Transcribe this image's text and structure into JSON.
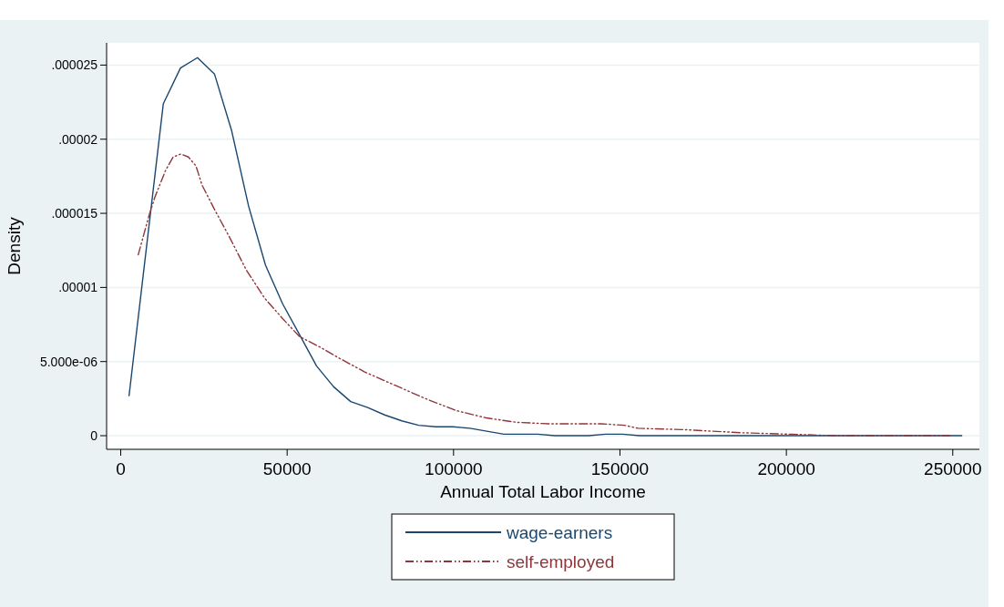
{
  "chart_data": {
    "type": "line",
    "xlabel": "Annual Total Labor Income",
    "ylabel": "Density",
    "xlim": [
      -4250,
      258000
    ],
    "xticks": [
      0,
      50000,
      100000,
      150000,
      200000,
      250000
    ],
    "ylim": [
      -9.2e-07,
      2.65e-05
    ],
    "yticks": [
      0,
      {
        "value": 5e-06,
        "label": "5.000e-06"
      },
      {
        "value": 1e-05,
        "label": ".00001"
      },
      {
        "value": 1.5e-05,
        "label": ".000015"
      },
      {
        "value": 2e-05,
        "label": ".00002"
      },
      {
        "value": 2.5e-05,
        "label": ".000025"
      }
    ],
    "grid": "y",
    "legend": "bottom",
    "marker": "none",
    "series": [
      {
        "name": "wage-earners",
        "color": "#1a476f",
        "line_style": "solid",
        "x": [
          2500,
          12800,
          17950,
          23060,
          28160,
          33290,
          38400,
          43500,
          48630,
          53750,
          58850,
          63970,
          69090,
          74200,
          79300,
          84430,
          89540,
          94650,
          99770,
          104900,
          110000,
          115100,
          120200,
          125300,
          130400,
          135500,
          140600,
          145700,
          150800,
          155900,
          170000,
          200000,
          230000,
          252700
        ],
        "values": [
          2.7e-06,
          2.24e-05,
          2.48e-05,
          2.55e-05,
          2.44e-05,
          2.06e-05,
          1.55e-05,
          1.15e-05,
          8.9e-06,
          6.8e-06,
          4.7e-06,
          3.3e-06,
          2.3e-06,
          1.9e-06,
          1.4e-06,
          1e-06,
          7e-07,
          6e-07,
          6e-07,
          5e-07,
          3e-07,
          1e-07,
          1e-07,
          1e-07,
          0,
          0,
          0,
          1e-07,
          1e-07,
          0,
          0,
          0,
          0,
          0
        ]
      },
      {
        "name": "self-employed",
        "color": "#90353b",
        "line_style": "dashed",
        "x": [
          5250,
          8440,
          10270,
          13480,
          15750,
          18030,
          20320,
          22600,
          24440,
          28080,
          32660,
          37670,
          43150,
          48630,
          53650,
          60500,
          65070,
          73290,
          82410,
          91560,
          100700,
          109800,
          118960,
          129000,
          144500,
          151370,
          155480,
          170000,
          186440,
          201200,
          214900,
          220000,
          249100
        ],
        "values": [
          1.22e-05,
          1.48e-05,
          1.61e-05,
          1.79e-05,
          1.88e-05,
          1.9e-05,
          1.88e-05,
          1.82e-05,
          1.69e-05,
          1.53e-05,
          1.34e-05,
          1.12e-05,
          9.3e-06,
          7.9e-06,
          6.7e-06,
          5.9e-06,
          5.3e-06,
          4.3e-06,
          3.4e-06,
          2.5e-06,
          1.7e-06,
          1.2e-06,
          9e-07,
          8e-07,
          8e-07,
          7e-07,
          5e-07,
          4e-07,
          2e-07,
          1e-07,
          0,
          0,
          0
        ]
      }
    ]
  }
}
